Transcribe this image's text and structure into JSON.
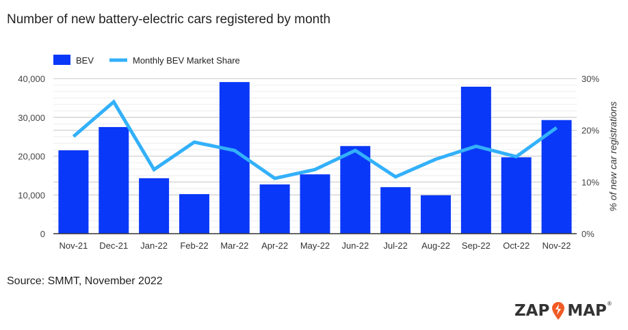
{
  "chart_data": {
    "type": "bar",
    "title": "Number of new battery-electric cars registered by month",
    "categories": [
      "Nov-21",
      "Dec-21",
      "Jan-22",
      "Feb-22",
      "Mar-22",
      "Apr-22",
      "May-22",
      "Jun-22",
      "Jul-22",
      "Aug-22",
      "Sep-22",
      "Oct-22",
      "Nov-22"
    ],
    "series": [
      {
        "name": "BEV",
        "type": "bar",
        "axis": "left",
        "color": "#0a38f8",
        "values": [
          21500,
          27500,
          14300,
          10200,
          39100,
          12700,
          15300,
          22600,
          12000,
          9900,
          37900,
          19700,
          29300
        ]
      },
      {
        "name": "Monthly BEV Market Share",
        "type": "line",
        "axis": "right",
        "color": "#33b0fa",
        "values": [
          18.8,
          25.5,
          12.4,
          17.7,
          16.1,
          10.7,
          12.4,
          16.1,
          11.0,
          14.4,
          16.9,
          14.9,
          20.5
        ]
      }
    ],
    "ylim": [
      0,
      40000
    ],
    "y_ticks": [
      "0",
      "10,000",
      "20,000",
      "30,000",
      "40,000"
    ],
    "y2lim": [
      0,
      30
    ],
    "y2_ticks": [
      "0%",
      "10%",
      "20%",
      "30%"
    ],
    "y2label": "% of new car registrations",
    "legend": "top-left",
    "grid": true
  },
  "source": "Source: SMMT, November 2022",
  "logo": {
    "text": "ZAP MAP",
    "left": "ZAP",
    "right": "MAP",
    "accent": "#f15a24"
  }
}
